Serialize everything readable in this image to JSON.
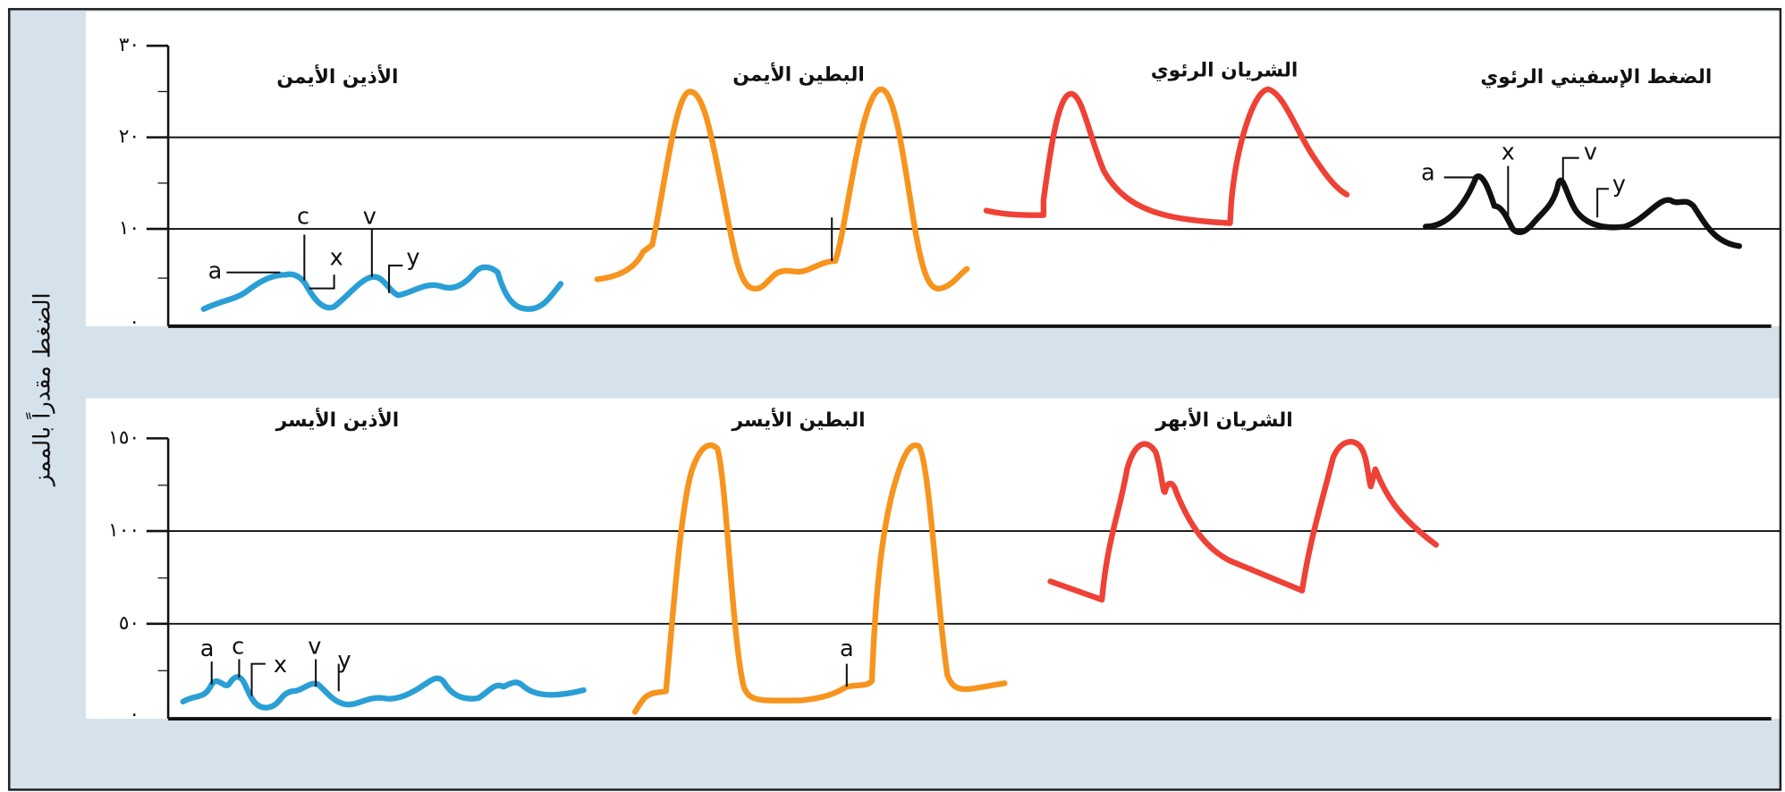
{
  "y_axis_label": "الضغط مقدراً بالممز",
  "panels": [
    {
      "ticks": [
        "٣٠",
        "٢٠",
        "١٠",
        "٠"
      ],
      "traces": [
        {
          "title": "الأذين الأيمن",
          "labels": [
            "a",
            "c",
            "x",
            "v",
            "y"
          ]
        },
        {
          "title": "البطين الأيمن"
        },
        {
          "title": "الشريان الرئوي"
        },
        {
          "title": "الضغط الإسفيني الرئوي",
          "labels": [
            "a",
            "x",
            "v",
            "y"
          ]
        }
      ]
    },
    {
      "ticks": [
        "١٥٠",
        "١٠٠",
        "٥٠",
        "٠"
      ],
      "traces": [
        {
          "title": "الأذين الأيسر",
          "labels": [
            "a",
            "c",
            "x",
            "v",
            "y"
          ]
        },
        {
          "title": "البطين الأيسر",
          "labels": [
            "a"
          ]
        },
        {
          "title": "الشريان الأبهر"
        }
      ]
    }
  ]
}
